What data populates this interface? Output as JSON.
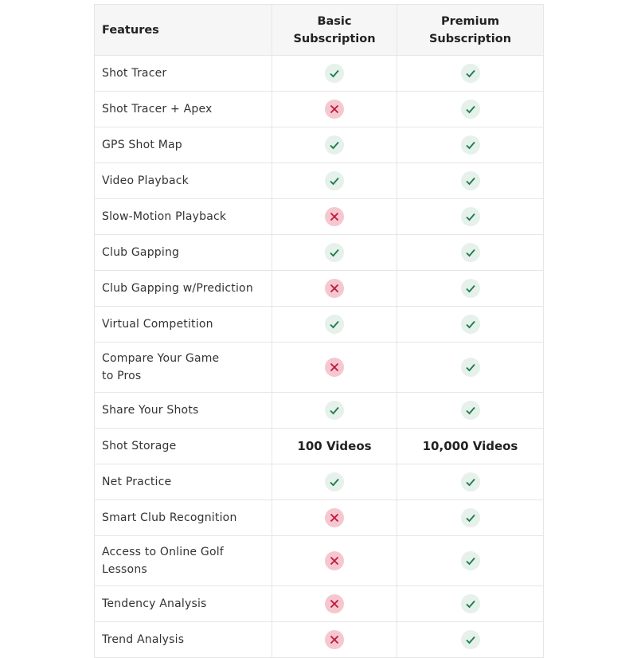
{
  "colors": {
    "check": "#1b7a4a",
    "check_bg": "#e5f1ea",
    "cross": "#c4153e",
    "cross_bg": "#f5c8d0",
    "header_bg": "#f6f6f6"
  },
  "header": {
    "features": "Features",
    "basic_line1": "Basic",
    "basic_line2": "Subscription",
    "premium_line1": "Premium",
    "premium_line2": "Subscription"
  },
  "rows": [
    {
      "feature": "Shot Tracer",
      "basic": "check",
      "premium": "check"
    },
    {
      "feature": "Shot Tracer + Apex",
      "basic": "cross",
      "premium": "check"
    },
    {
      "feature": "GPS Shot Map",
      "basic": "check",
      "premium": "check"
    },
    {
      "feature": "Video Playback",
      "basic": "check",
      "premium": "check"
    },
    {
      "feature": "Slow-Motion Playback",
      "basic": "cross",
      "premium": "check"
    },
    {
      "feature": "Club Gapping",
      "basic": "check",
      "premium": "check"
    },
    {
      "feature": "Club Gapping w/Prediction",
      "basic": "cross",
      "premium": "check"
    },
    {
      "feature": "Virtual Competition",
      "basic": "check",
      "premium": "check"
    },
    {
      "feature": "Compare Your Game to Pros",
      "basic": "cross",
      "premium": "check",
      "tall": true
    },
    {
      "feature": "Share Your Shots",
      "basic": "check",
      "premium": "check"
    },
    {
      "feature": "Shot Storage",
      "basic": "100 Videos",
      "premium": "10,000 Videos"
    },
    {
      "feature": "Net Practice",
      "basic": "check",
      "premium": "check"
    },
    {
      "feature": "Smart Club Recognition",
      "basic": "cross",
      "premium": "check"
    },
    {
      "feature": "Access to Online Golf Lessons",
      "basic": "cross",
      "premium": "check",
      "tall": true
    },
    {
      "feature": "Tendency Analysis",
      "basic": "cross",
      "premium": "check"
    },
    {
      "feature": "Trend Analysis",
      "basic": "cross",
      "premium": "check"
    }
  ]
}
